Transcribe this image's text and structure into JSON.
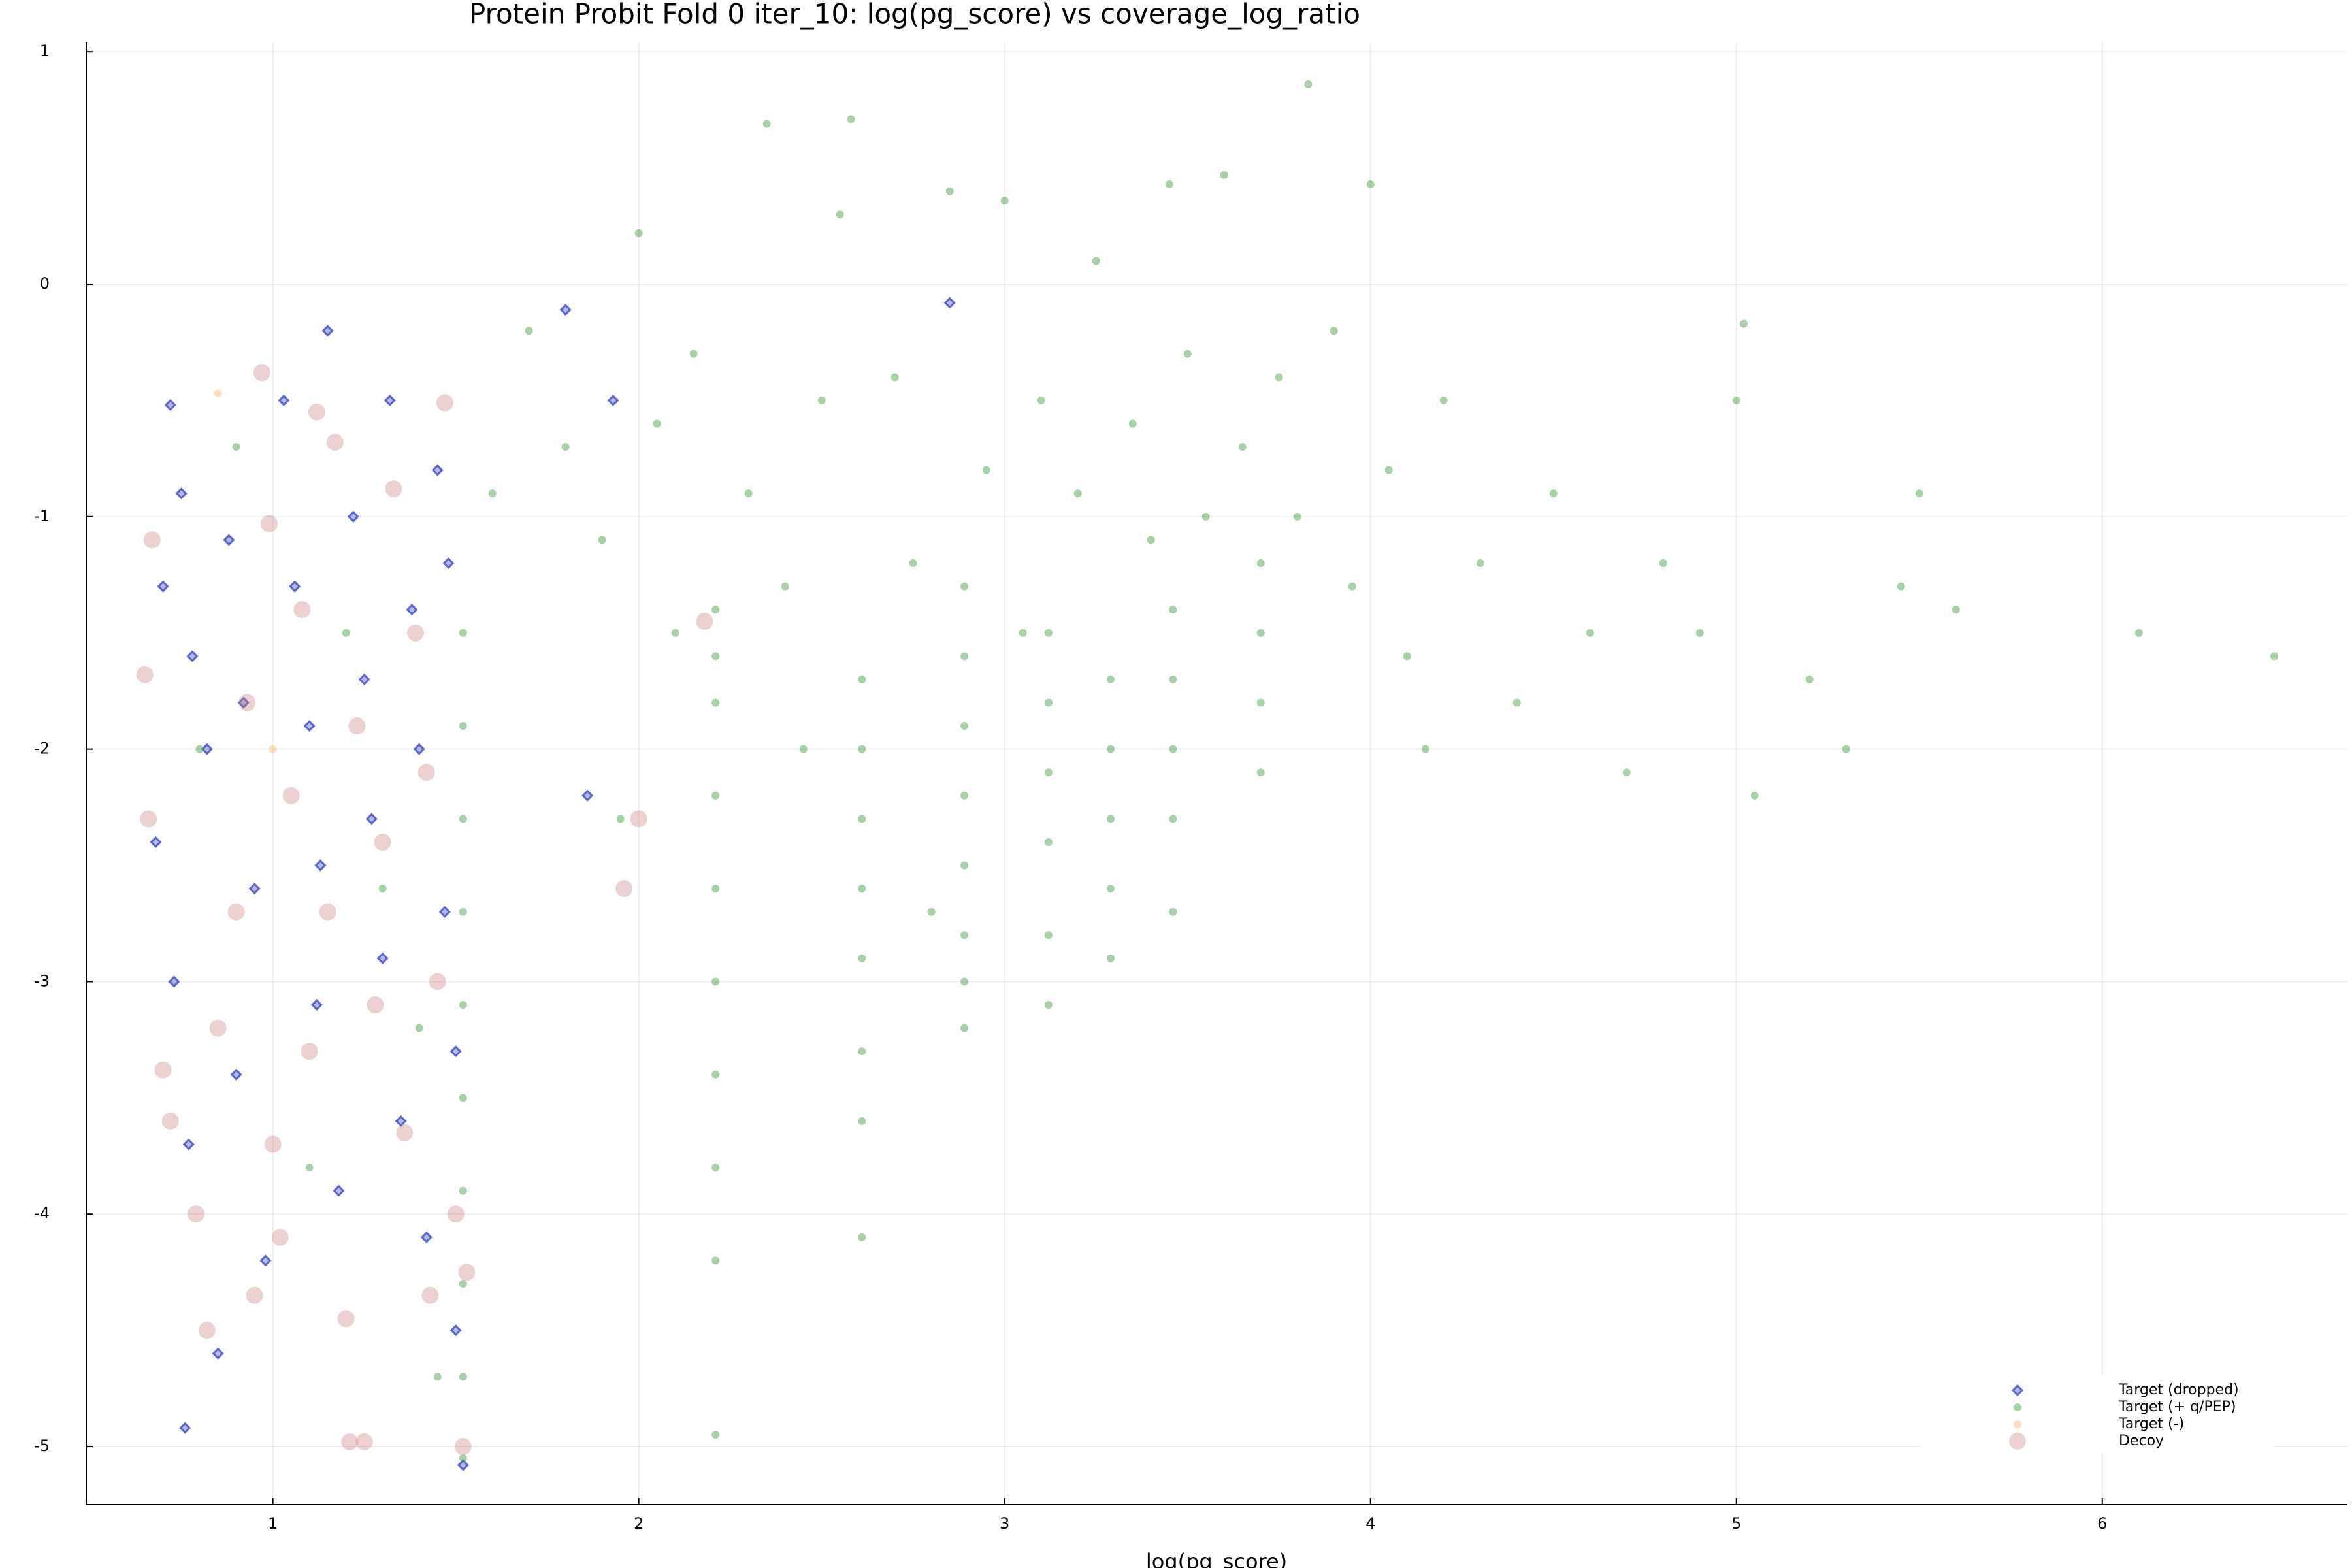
{
  "chart_data": {
    "type": "scatter",
    "title": "Protein Probit Fold 0 iter_10: log(pg_score) vs coverage_log_ratio",
    "x_label": "log(pg_score)",
    "xlim": [
      0.49,
      6.67
    ],
    "ylim": [
      -5.25,
      1.04
    ],
    "xticks": [
      1,
      2,
      3,
      4,
      5,
      6
    ],
    "yticks": [
      -5,
      -4,
      -3,
      -2,
      -1,
      0,
      1
    ],
    "grid": true,
    "legend": "bottom-right",
    "series": [
      {
        "name": "Target (dropped)",
        "color": "#2436b8",
        "marker": "diamond",
        "x": [
          0.72,
          0.75,
          0.7,
          0.78,
          0.82,
          0.68,
          0.73,
          0.77,
          0.76,
          0.85,
          0.88,
          0.92,
          0.95,
          0.9,
          0.98,
          1.03,
          1.06,
          1.1,
          1.13,
          1.15,
          1.12,
          1.18,
          1.22,
          1.25,
          1.27,
          1.3,
          1.32,
          1.35,
          1.38,
          1.4,
          1.42,
          1.45,
          1.47,
          1.5,
          1.52,
          1.48,
          1.5,
          1.8,
          1.86,
          1.93,
          2.85
        ],
        "values": [
          -0.52,
          -0.9,
          -1.3,
          -1.6,
          -2.0,
          -2.4,
          -3.0,
          -3.7,
          -4.92,
          -4.6,
          -1.1,
          -1.8,
          -2.6,
          -3.4,
          -4.2,
          -0.5,
          -1.3,
          -1.9,
          -2.5,
          -0.2,
          -3.1,
          -3.9,
          -1.0,
          -1.7,
          -2.3,
          -2.9,
          -0.5,
          -3.6,
          -1.4,
          -2.0,
          -4.1,
          -0.8,
          -2.7,
          -3.3,
          -5.08,
          -1.2,
          -4.5,
          -0.11,
          -2.2,
          -0.5,
          -0.08
        ]
      },
      {
        "name": "Target (+ q/PEP)",
        "color": "#228b22",
        "marker": "circle",
        "x": [
          1.52,
          1.52,
          1.52,
          1.52,
          1.52,
          1.52,
          1.52,
          1.52,
          1.52,
          1.52,
          2.21,
          2.21,
          2.21,
          2.21,
          2.21,
          2.21,
          2.21,
          2.21,
          2.21,
          2.21,
          2.61,
          2.61,
          2.61,
          2.61,
          2.61,
          2.61,
          2.61,
          2.61,
          2.89,
          2.89,
          2.89,
          2.89,
          2.89,
          2.89,
          2.89,
          2.89,
          3.12,
          3.12,
          3.12,
          3.12,
          3.12,
          3.12,
          3.29,
          3.29,
          3.29,
          3.29,
          3.29,
          3.46,
          3.46,
          3.46,
          3.46,
          3.46,
          3.7,
          3.7,
          3.7,
          3.7,
          1.6,
          1.7,
          1.8,
          1.9,
          1.95,
          2.0,
          2.05,
          2.1,
          2.15,
          2.3,
          2.35,
          2.4,
          2.45,
          2.5,
          2.55,
          2.58,
          2.7,
          2.75,
          2.8,
          2.85,
          2.95,
          3.0,
          3.05,
          3.1,
          3.2,
          3.25,
          3.35,
          3.4,
          3.45,
          3.5,
          3.55,
          3.6,
          3.65,
          3.75,
          3.8,
          3.83,
          3.9,
          3.95,
          4.0,
          4.05,
          4.1,
          4.15,
          4.2,
          4.3,
          4.4,
          4.5,
          4.6,
          4.7,
          4.8,
          4.9,
          5.0,
          5.02,
          5.05,
          5.2,
          5.3,
          5.45,
          5.5,
          5.6,
          6.1,
          6.47,
          1.4,
          1.3,
          1.2,
          1.1,
          0.9,
          0.8,
          1.45
        ],
        "values": [
          -1.5,
          -1.9,
          -2.3,
          -2.7,
          -3.1,
          -3.5,
          -3.9,
          -4.3,
          -4.7,
          -5.05,
          -1.4,
          -1.8,
          -2.2,
          -2.6,
          -3.0,
          -3.4,
          -3.8,
          -4.2,
          -4.95,
          -1.6,
          -1.7,
          -2.0,
          -2.3,
          -2.6,
          -2.9,
          -3.3,
          -3.6,
          -4.1,
          -1.6,
          -1.9,
          -2.2,
          -2.5,
          -2.8,
          -3.0,
          -3.2,
          -1.3,
          -1.5,
          -1.8,
          -2.1,
          -2.4,
          -2.8,
          -3.1,
          -1.7,
          -2.0,
          -2.3,
          -2.6,
          -2.9,
          -1.4,
          -1.7,
          -2.0,
          -2.3,
          -2.7,
          -1.2,
          -1.5,
          -1.8,
          -2.1,
          -0.9,
          -0.2,
          -0.7,
          -1.1,
          -2.3,
          0.22,
          -0.6,
          -1.5,
          -0.3,
          -0.9,
          0.69,
          -1.3,
          -2.0,
          -0.5,
          0.3,
          0.71,
          -0.4,
          -1.2,
          -2.7,
          0.4,
          -0.8,
          0.36,
          -1.5,
          -0.5,
          -0.9,
          0.1,
          -0.6,
          -1.1,
          0.43,
          -0.3,
          -1.0,
          0.47,
          -0.7,
          -0.4,
          -1.0,
          0.86,
          -0.2,
          -1.3,
          0.43,
          -0.8,
          -1.6,
          -2.0,
          -0.5,
          -1.2,
          -1.8,
          -0.9,
          -1.5,
          -2.1,
          -1.2,
          -1.5,
          -0.5,
          -0.17,
          -2.2,
          -1.7,
          -2.0,
          -1.3,
          -0.9,
          -1.4,
          -1.5,
          -1.6,
          -3.2,
          -2.6,
          -1.5,
          -3.8,
          -0.7,
          -2.0,
          -4.7
        ]
      },
      {
        "name": "Target (-)",
        "color": "#ffb15c",
        "marker": "circle",
        "x": [
          0.85,
          1.0
        ],
        "values": [
          -0.47,
          -2.0
        ]
      },
      {
        "name": "Decoy",
        "color": "#c87a7a",
        "marker": "big-circle",
        "x": [
          0.67,
          0.65,
          0.66,
          0.7,
          0.72,
          0.79,
          0.82,
          0.85,
          0.9,
          0.93,
          0.97,
          0.99,
          1.0,
          1.02,
          1.05,
          1.08,
          1.1,
          1.12,
          1.15,
          1.17,
          1.2,
          1.21,
          1.25,
          1.23,
          1.28,
          1.3,
          1.33,
          1.36,
          1.39,
          1.42,
          1.45,
          1.47,
          1.5,
          1.52,
          1.53,
          1.43,
          0.95,
          1.96,
          2.0,
          2.18
        ],
        "values": [
          -1.1,
          -1.68,
          -2.3,
          -3.38,
          -3.6,
          -4.0,
          -4.5,
          -3.2,
          -2.7,
          -1.8,
          -0.38,
          -1.03,
          -3.7,
          -4.1,
          -2.2,
          -1.4,
          -3.3,
          -0.55,
          -2.7,
          -0.68,
          -4.45,
          -4.98,
          -4.98,
          -1.9,
          -3.1,
          -2.4,
          -0.88,
          -3.65,
          -1.5,
          -2.1,
          -3.0,
          -0.51,
          -4.0,
          -5.0,
          -4.25,
          -4.35,
          -4.35,
          -2.6,
          -2.3,
          -1.45
        ]
      }
    ]
  }
}
